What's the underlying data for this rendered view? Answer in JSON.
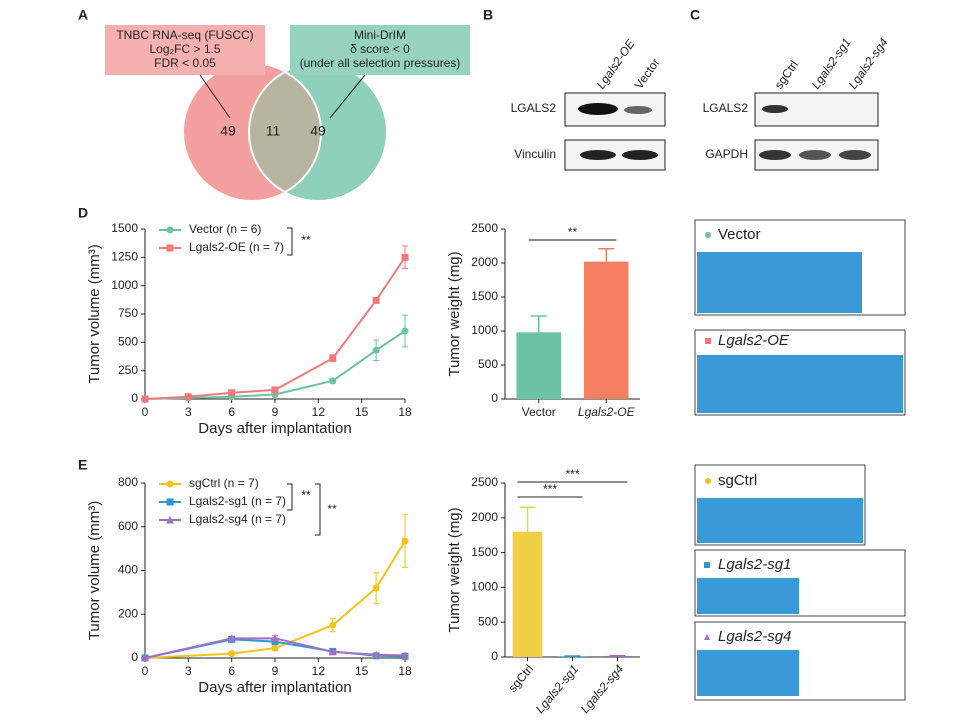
{
  "panels": {
    "a": {
      "letter": "A",
      "box1": [
        "TNBC RNA-seq (FUSCC)",
        "Log₂FC > 1.5",
        "FDR < 0.05"
      ],
      "box2": [
        "Mini-DrIM",
        "δ score < 0",
        "(under all selection pressures)"
      ],
      "left": "49",
      "overlap": "11",
      "right": "49"
    },
    "b": {
      "letter": "B",
      "lanes": [
        "Lgals2-OE",
        "Vector"
      ],
      "rows": [
        "LGALS2",
        "Vinculin"
      ]
    },
    "c": {
      "letter": "C",
      "lanes": [
        "sgCtrl",
        "Lgals2-sg1",
        "Lgals2-sg4"
      ],
      "rows": [
        "LGALS2",
        "GAPDH"
      ]
    },
    "d": {
      "letter": "D",
      "photos": [
        "Vector",
        "Lgals2-OE"
      ]
    },
    "e": {
      "letter": "E",
      "photos": [
        "sgCtrl",
        "Lgals2-sg1",
        "Lgals2-sg4"
      ]
    }
  },
  "chart_data": [
    {
      "type": "line",
      "xlabel": "Days after implantation",
      "ylabel": "Tumor volume (mm³)",
      "x": [
        0,
        3,
        6,
        9,
        13,
        16,
        18
      ],
      "series": [
        {
          "name": "Vector (n = 6)",
          "color": "#6cc3a3",
          "values": [
            0,
            10,
            20,
            40,
            160,
            430,
            600
          ],
          "errors": [
            0,
            5,
            10,
            15,
            20,
            90,
            140
          ]
        },
        {
          "name": "Lgals2-OE (n = 7)",
          "color": "#f07a7a",
          "values": [
            0,
            20,
            55,
            80,
            360,
            870,
            1250
          ],
          "errors": [
            0,
            5,
            15,
            15,
            30,
            20,
            100
          ]
        }
      ],
      "xlim": [
        0,
        18
      ],
      "xticks": [
        0,
        3,
        6,
        9,
        12,
        15,
        18
      ],
      "ylim": [
        0,
        1500
      ],
      "yticks": [
        0,
        250,
        500,
        750,
        1000,
        1250,
        1500
      ],
      "annotations": [
        "**"
      ]
    },
    {
      "type": "bar",
      "ylabel": "Tumor weight (mg)",
      "categories": [
        "Vector",
        "Lgals2-OE"
      ],
      "values": [
        980,
        2020
      ],
      "errors": [
        240,
        190
      ],
      "colors": [
        "#6cc3a3",
        "#f47f61"
      ],
      "ylim": [
        0,
        2500
      ],
      "yticks": [
        0,
        500,
        1000,
        1500,
        2000,
        2500
      ],
      "annotations": [
        "**"
      ]
    },
    {
      "type": "line",
      "xlabel": "Days after implantation",
      "ylabel": "Tumor volume (mm³)",
      "x": [
        0,
        6,
        9,
        13,
        16,
        18
      ],
      "series": [
        {
          "name": "sgCtrl (n = 7)",
          "color": "#f0c419",
          "values": [
            0,
            20,
            45,
            150,
            320,
            535
          ],
          "errors": [
            0,
            5,
            10,
            30,
            70,
            120
          ]
        },
        {
          "name": "Lgals2-sg1 (n = 7)",
          "color": "#2a9ad0",
          "values": [
            0,
            85,
            75,
            30,
            10,
            8
          ],
          "errors": [
            0,
            8,
            10,
            5,
            4,
            3
          ]
        },
        {
          "name": "Lgals2-sg4 (n = 7)",
          "color": "#a070c0",
          "values": [
            0,
            90,
            90,
            28,
            15,
            12
          ],
          "errors": [
            0,
            8,
            12,
            5,
            4,
            3
          ]
        }
      ],
      "xlim": [
        0,
        18
      ],
      "xticks": [
        0,
        3,
        6,
        9,
        12,
        15,
        18
      ],
      "ylim": [
        0,
        800
      ],
      "yticks": [
        0,
        200,
        400,
        600,
        800
      ],
      "annotations": [
        "**",
        "**"
      ]
    },
    {
      "type": "bar",
      "ylabel": "Tumor weight (mg)",
      "categories": [
        "sgCtrl",
        "Lgals2-sg1",
        "Lgals2-sg4"
      ],
      "values": [
        1800,
        10,
        15
      ],
      "errors": [
        350,
        5,
        5
      ],
      "colors": [
        "#f0cf45",
        "#2a9ad0",
        "#a070c0"
      ],
      "ylim": [
        0,
        2500
      ],
      "yticks": [
        0,
        500,
        1000,
        1500,
        2000,
        2500
      ],
      "annotations": [
        "***",
        "***"
      ]
    }
  ]
}
